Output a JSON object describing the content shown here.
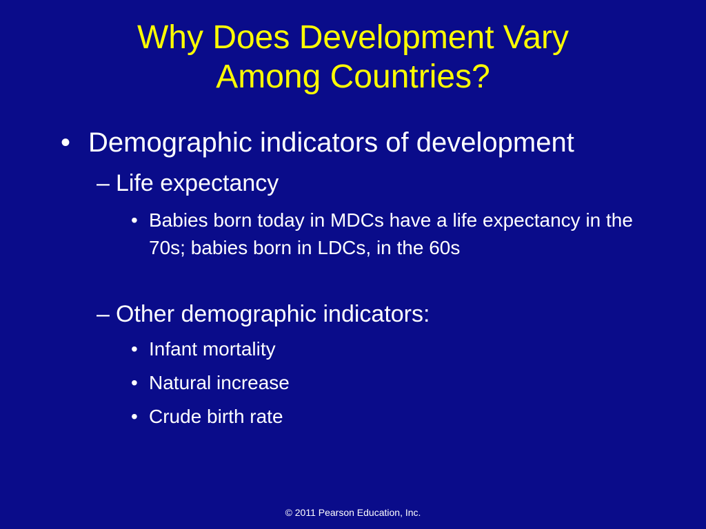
{
  "slide": {
    "title_line1": "Why Does Development Vary",
    "title_line2": "Among Countries?",
    "bullet_mark": "•",
    "dash_mark": "–",
    "level1": {
      "text": "Demographic indicators of development"
    },
    "life_expectancy": {
      "heading": "Life expectancy",
      "items": [
        "Babies born today in MDCs have a life expectancy in the 70s; babies born in LDCs, in the 60s"
      ]
    },
    "other_indicators": {
      "heading": "Other demographic indicators:",
      "items": [
        "Infant mortality",
        "Natural increase",
        "Crude birth rate"
      ]
    },
    "footer": "© 2011 Pearson Education, Inc.",
    "colors": {
      "background": "#0a0c8a",
      "title": "#ffff00",
      "text": "#ffffff"
    }
  }
}
